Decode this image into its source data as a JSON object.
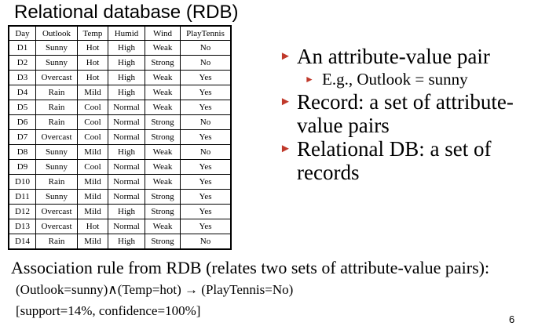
{
  "title": "Relational database (RDB)",
  "table": {
    "headers": [
      "Day",
      "Outlook",
      "Temp",
      "Humid",
      "Wind",
      "PlayTennis"
    ],
    "rows": [
      [
        "D1",
        "Sunny",
        "Hot",
        "High",
        "Weak",
        "No"
      ],
      [
        "D2",
        "Sunny",
        "Hot",
        "High",
        "Strong",
        "No"
      ],
      [
        "D3",
        "Overcast",
        "Hot",
        "High",
        "Weak",
        "Yes"
      ],
      [
        "D4",
        "Rain",
        "Mild",
        "High",
        "Weak",
        "Yes"
      ],
      [
        "D5",
        "Rain",
        "Cool",
        "Normal",
        "Weak",
        "Yes"
      ],
      [
        "D6",
        "Rain",
        "Cool",
        "Normal",
        "Strong",
        "No"
      ],
      [
        "D7",
        "Overcast",
        "Cool",
        "Normal",
        "Strong",
        "Yes"
      ],
      [
        "D8",
        "Sunny",
        "Mild",
        "High",
        "Weak",
        "No"
      ],
      [
        "D9",
        "Sunny",
        "Cool",
        "Normal",
        "Weak",
        "Yes"
      ],
      [
        "D10",
        "Rain",
        "Mild",
        "Normal",
        "Weak",
        "Yes"
      ],
      [
        "D11",
        "Sunny",
        "Mild",
        "Normal",
        "Strong",
        "Yes"
      ],
      [
        "D12",
        "Overcast",
        "Mild",
        "High",
        "Strong",
        "Yes"
      ],
      [
        "D13",
        "Overcast",
        "Hot",
        "Normal",
        "Weak",
        "Yes"
      ],
      [
        "D14",
        "Rain",
        "Mild",
        "High",
        "Strong",
        "No"
      ]
    ]
  },
  "bullets": {
    "pair": "An attribute-value pair",
    "pair_example": "E.g., Outlook = sunny",
    "record": "Record: a set of attribute-value pairs",
    "relational_db": "Relational DB: a set of records"
  },
  "association": {
    "heading": "Association rule from RDB (relates two sets of attribute-value pairs):",
    "rule": "(Outlook=sunny)∧(Temp=hot) → (PlayTennis=No)",
    "metrics": "[support=14%, confidence=100%]"
  },
  "page_number": "6",
  "colors": {
    "bullet_marker": "#c0392b"
  }
}
